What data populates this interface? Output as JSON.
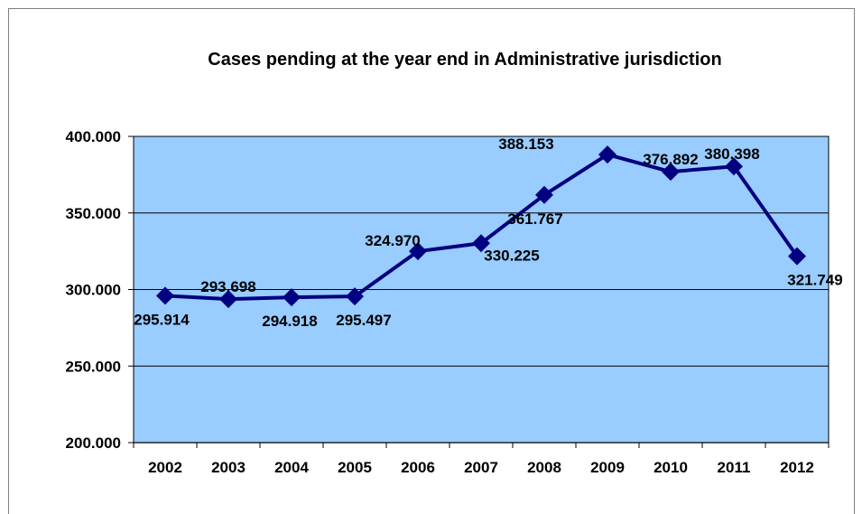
{
  "chart_data": {
    "type": "line",
    "title": "Cases pending at the year end in Administrative jurisdiction",
    "xlabel": "",
    "ylabel": "",
    "categories": [
      "2002",
      "2003",
      "2004",
      "2005",
      "2006",
      "2007",
      "2008",
      "2009",
      "2010",
      "2011",
      "2012"
    ],
    "series": [
      {
        "values": [
          295914,
          293698,
          294918,
          295497,
          324970,
          330225,
          361767,
          388153,
          376892,
          380398,
          321749
        ],
        "labels": [
          "295.914",
          "293.698",
          "294.918",
          "295.497",
          "324.970",
          "330.225",
          "361.767",
          "388.153",
          "376.892",
          "380.398",
          "321.749"
        ]
      }
    ],
    "ylim": [
      200000,
      400000
    ],
    "yticks": [
      200000,
      250000,
      300000,
      350000,
      400000
    ],
    "ytick_labels": [
      "200.000",
      "250.000",
      "300.000",
      "350.000",
      "400.000"
    ],
    "grid": true,
    "legend": "none",
    "colors": {
      "plot_background": "#99ccff",
      "line": "#000080",
      "gridline": "#000000"
    }
  }
}
